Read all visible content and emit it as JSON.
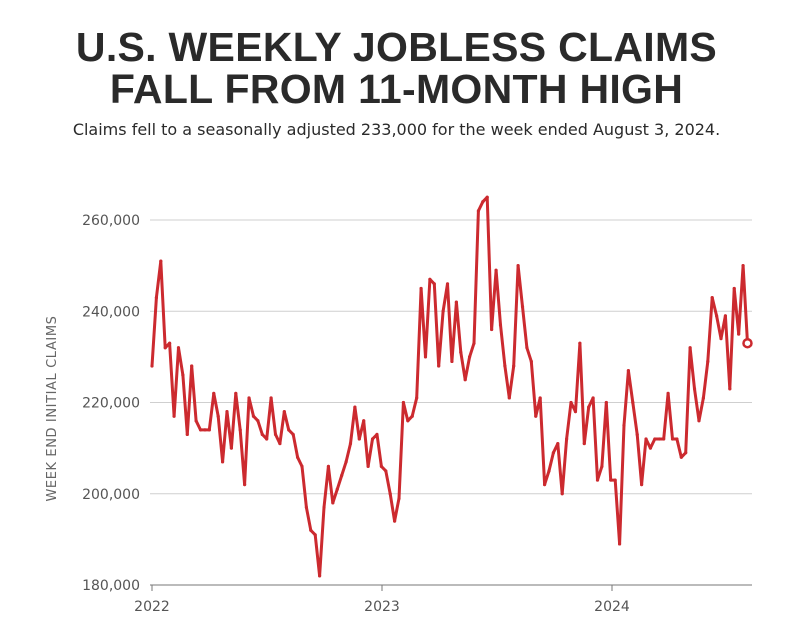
{
  "header": {
    "title_line1": "U.S. WEEKLY JOBLESS CLAIMS",
    "title_line2": "FALL FROM 11-MONTH HIGH",
    "subtitle": "Claims fell to a seasonally adjusted 233,000 for the week ended August 3, 2024."
  },
  "colors": {
    "series": "#cc2a2f",
    "grid": "#cfcfcf",
    "text": "#2a2a2a"
  },
  "chart_data": {
    "type": "line",
    "ylabel": "WEEK END INITIAL CLAIMS",
    "ylim": [
      180000,
      265000
    ],
    "yticks": [
      180000,
      200000,
      220000,
      240000,
      260000
    ],
    "ytick_labels": [
      "180,000",
      "200,000",
      "220,000",
      "240,000",
      "260,000"
    ],
    "xlim": [
      "2022-01-01",
      "2024-08-10"
    ],
    "xticks": [
      "2022-01-01",
      "2023-01-01",
      "2024-01-01"
    ],
    "xtick_labels": [
      "2022",
      "2023",
      "2024"
    ],
    "grid": true,
    "series": [
      {
        "points": [
          [
            "2022-01-01",
            228000
          ],
          [
            "2022-01-08",
            243000
          ],
          [
            "2022-01-15",
            251000
          ],
          [
            "2022-01-22",
            232000
          ],
          [
            "2022-01-29",
            233000
          ],
          [
            "2022-02-05",
            217000
          ],
          [
            "2022-02-12",
            232000
          ],
          [
            "2022-02-19",
            226000
          ],
          [
            "2022-02-26",
            213000
          ],
          [
            "2022-03-05",
            228000
          ],
          [
            "2022-03-12",
            216000
          ],
          [
            "2022-03-19",
            214000
          ],
          [
            "2022-03-26",
            214000
          ],
          [
            "2022-04-02",
            214000
          ],
          [
            "2022-04-09",
            222000
          ],
          [
            "2022-04-16",
            217000
          ],
          [
            "2022-04-23",
            207000
          ],
          [
            "2022-04-30",
            218000
          ],
          [
            "2022-05-07",
            210000
          ],
          [
            "2022-05-14",
            222000
          ],
          [
            "2022-05-21",
            214000
          ],
          [
            "2022-05-28",
            202000
          ],
          [
            "2022-06-04",
            221000
          ],
          [
            "2022-06-11",
            217000
          ],
          [
            "2022-06-18",
            216000
          ],
          [
            "2022-06-25",
            213000
          ],
          [
            "2022-07-02",
            212000
          ],
          [
            "2022-07-09",
            221000
          ],
          [
            "2022-07-16",
            213000
          ],
          [
            "2022-07-23",
            211000
          ],
          [
            "2022-07-30",
            218000
          ],
          [
            "2022-08-06",
            214000
          ],
          [
            "2022-08-13",
            213000
          ],
          [
            "2022-08-20",
            208000
          ],
          [
            "2022-08-27",
            206000
          ],
          [
            "2022-09-03",
            197000
          ],
          [
            "2022-09-10",
            192000
          ],
          [
            "2022-09-17",
            191000
          ],
          [
            "2022-09-24",
            182000
          ],
          [
            "2022-10-01",
            197000
          ],
          [
            "2022-10-08",
            206000
          ],
          [
            "2022-10-15",
            198000
          ],
          [
            "2022-10-22",
            201000
          ],
          [
            "2022-10-29",
            204000
          ],
          [
            "2022-11-05",
            207000
          ],
          [
            "2022-11-12",
            211000
          ],
          [
            "2022-11-19",
            219000
          ],
          [
            "2022-11-26",
            212000
          ],
          [
            "2022-12-03",
            216000
          ],
          [
            "2022-12-10",
            206000
          ],
          [
            "2022-12-17",
            212000
          ],
          [
            "2022-12-24",
            213000
          ],
          [
            "2022-12-31",
            206000
          ],
          [
            "2023-01-07",
            205000
          ],
          [
            "2023-01-14",
            200000
          ],
          [
            "2023-01-21",
            194000
          ],
          [
            "2023-01-28",
            199000
          ],
          [
            "2023-02-04",
            220000
          ],
          [
            "2023-02-11",
            216000
          ],
          [
            "2023-02-18",
            217000
          ],
          [
            "2023-02-25",
            221000
          ],
          [
            "2023-03-04",
            245000
          ],
          [
            "2023-03-11",
            230000
          ],
          [
            "2023-03-18",
            247000
          ],
          [
            "2023-03-25",
            246000
          ],
          [
            "2023-04-01",
            228000
          ],
          [
            "2023-04-08",
            240000
          ],
          [
            "2023-04-15",
            246000
          ],
          [
            "2023-04-22",
            229000
          ],
          [
            "2023-04-29",
            242000
          ],
          [
            "2023-05-06",
            231000
          ],
          [
            "2023-05-13",
            225000
          ],
          [
            "2023-05-20",
            230000
          ],
          [
            "2023-05-27",
            233000
          ],
          [
            "2023-06-03",
            262000
          ],
          [
            "2023-06-10",
            264000
          ],
          [
            "2023-06-17",
            265000
          ],
          [
            "2023-06-24",
            236000
          ],
          [
            "2023-07-01",
            249000
          ],
          [
            "2023-07-08",
            237000
          ],
          [
            "2023-07-15",
            228000
          ],
          [
            "2023-07-22",
            221000
          ],
          [
            "2023-07-29",
            228000
          ],
          [
            "2023-08-05",
            250000
          ],
          [
            "2023-08-12",
            241000
          ],
          [
            "2023-08-19",
            232000
          ],
          [
            "2023-08-26",
            229000
          ],
          [
            "2023-09-02",
            217000
          ],
          [
            "2023-09-09",
            221000
          ],
          [
            "2023-09-16",
            202000
          ],
          [
            "2023-09-23",
            205000
          ],
          [
            "2023-09-30",
            209000
          ],
          [
            "2023-10-07",
            211000
          ],
          [
            "2023-10-14",
            200000
          ],
          [
            "2023-10-21",
            212000
          ],
          [
            "2023-10-28",
            220000
          ],
          [
            "2023-11-04",
            218000
          ],
          [
            "2023-11-11",
            233000
          ],
          [
            "2023-11-18",
            211000
          ],
          [
            "2023-11-25",
            219000
          ],
          [
            "2023-12-02",
            221000
          ],
          [
            "2023-12-09",
            203000
          ],
          [
            "2023-12-16",
            206000
          ],
          [
            "2023-12-23",
            220000
          ],
          [
            "2023-12-30",
            203000
          ],
          [
            "2024-01-06",
            203000
          ],
          [
            "2024-01-13",
            189000
          ],
          [
            "2024-01-20",
            215000
          ],
          [
            "2024-01-27",
            227000
          ],
          [
            "2024-02-03",
            220000
          ],
          [
            "2024-02-10",
            213000
          ],
          [
            "2024-02-17",
            202000
          ],
          [
            "2024-02-24",
            212000
          ],
          [
            "2024-03-02",
            210000
          ],
          [
            "2024-03-09",
            212000
          ],
          [
            "2024-03-16",
            212000
          ],
          [
            "2024-03-23",
            212000
          ],
          [
            "2024-03-30",
            222000
          ],
          [
            "2024-04-06",
            212000
          ],
          [
            "2024-04-13",
            212000
          ],
          [
            "2024-04-20",
            208000
          ],
          [
            "2024-04-27",
            209000
          ],
          [
            "2024-05-04",
            232000
          ],
          [
            "2024-05-11",
            223000
          ],
          [
            "2024-05-18",
            216000
          ],
          [
            "2024-05-25",
            221000
          ],
          [
            "2024-06-01",
            229000
          ],
          [
            "2024-06-08",
            243000
          ],
          [
            "2024-06-15",
            239000
          ],
          [
            "2024-06-22",
            234000
          ],
          [
            "2024-06-29",
            239000
          ],
          [
            "2024-07-06",
            223000
          ],
          [
            "2024-07-13",
            245000
          ],
          [
            "2024-07-20",
            235000
          ],
          [
            "2024-07-27",
            250000
          ],
          [
            "2024-08-03",
            233000
          ]
        ]
      }
    ]
  }
}
